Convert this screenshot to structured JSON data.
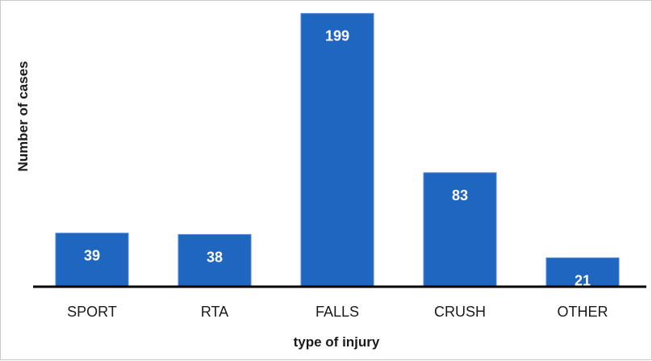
{
  "chart_data": {
    "type": "bar",
    "categories": [
      "SPORT",
      "RTA",
      "FALLS",
      "CRUSH",
      "OTHER"
    ],
    "values": [
      39,
      38,
      199,
      83,
      21
    ],
    "data_labels": [
      "39",
      "38",
      "199",
      "83",
      "21"
    ],
    "title": "",
    "xlabel": "type of injury",
    "ylabel": "Number of cases",
    "ylim": [
      0,
      200
    ],
    "grid": false,
    "legend": "none",
    "bar_color": "#1f66c1",
    "bar_edge_color": "#4f86d2",
    "axis_color": "#000000"
  }
}
